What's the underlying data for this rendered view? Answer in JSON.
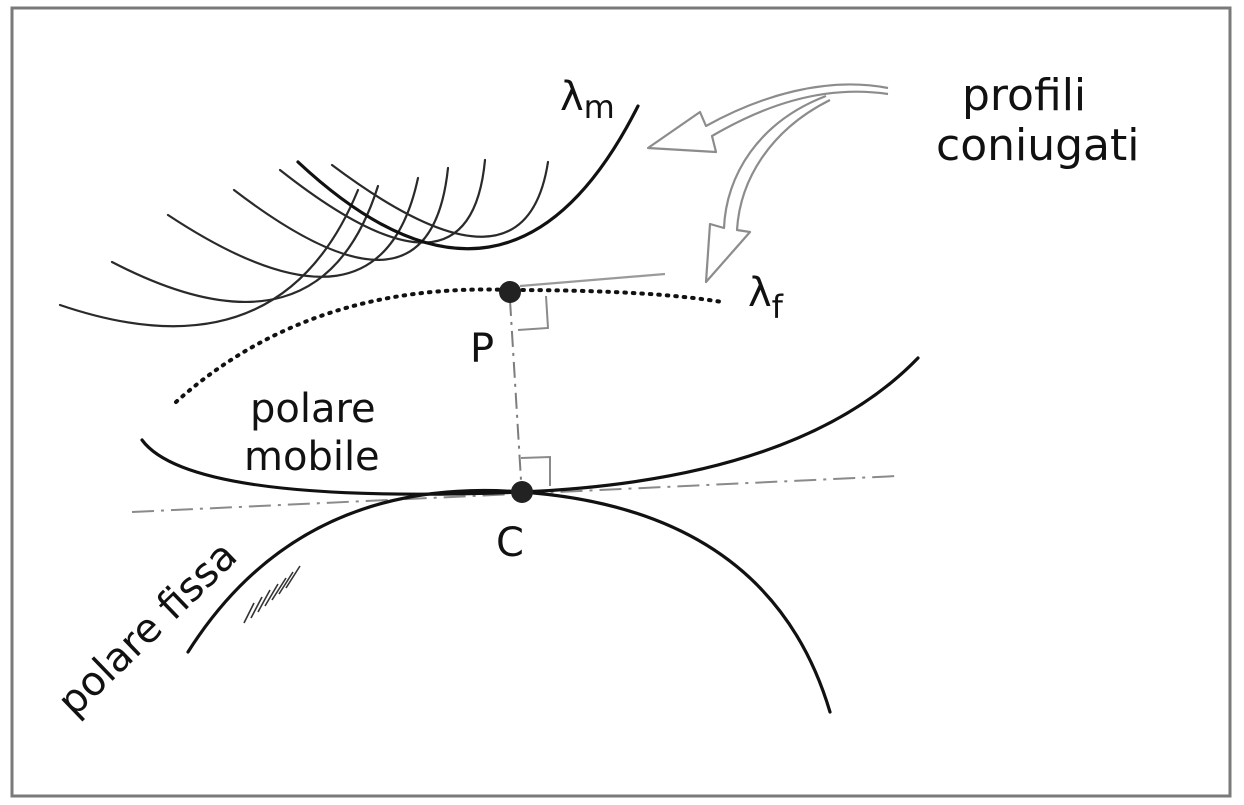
{
  "labels": {
    "profili_line1": "profili",
    "profili_line2": "coniugati",
    "lambda_m_symbol": "λ",
    "lambda_m_subscript": "m",
    "lambda_f_symbol": "λ",
    "lambda_f_subscript": "f",
    "point_p": "P",
    "point_c": "C",
    "polare_mobile_line1": "polare",
    "polare_mobile_line2": "mobile",
    "polare_fissa": "polare fissa"
  },
  "colors": {
    "ink": "#111111",
    "grey_lines": "#8a8a8a",
    "frame": "#7a7a7a",
    "background": "#ffffff"
  }
}
